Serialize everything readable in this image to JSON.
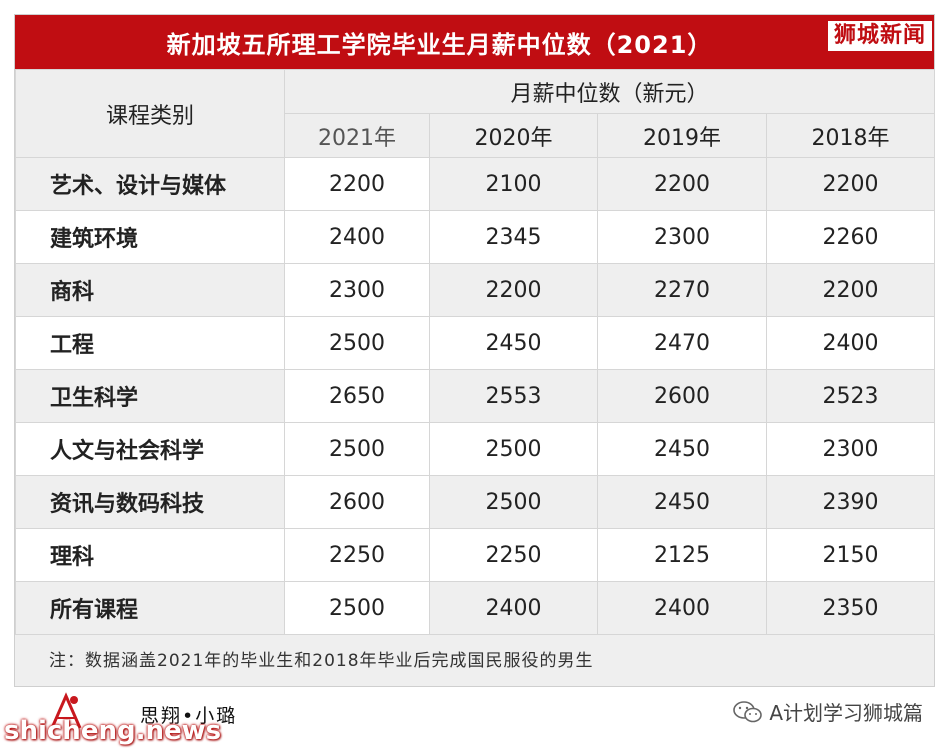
{
  "title": "新加坡五所理工学院毕业生月薪中位数（2021）",
  "brand_tag": "狮城新闻",
  "table": {
    "category_header": "课程类别",
    "group_header": "月薪中位数（新元）",
    "years": [
      "2021年",
      "2020年",
      "2019年",
      "2018年"
    ],
    "rows": [
      {
        "label": "艺术、设计与媒体",
        "v": [
          "2200",
          "2100",
          "2200",
          "2200"
        ]
      },
      {
        "label": "建筑环境",
        "v": [
          "2400",
          "2345",
          "2300",
          "2260"
        ]
      },
      {
        "label": "商科",
        "v": [
          "2300",
          "2200",
          "2270",
          "2200"
        ]
      },
      {
        "label": "工程",
        "v": [
          "2500",
          "2450",
          "2470",
          "2400"
        ]
      },
      {
        "label": "卫生科学",
        "v": [
          "2650",
          "2553",
          "2600",
          "2523"
        ]
      },
      {
        "label": "人文与社会科学",
        "v": [
          "2500",
          "2500",
          "2450",
          "2300"
        ]
      },
      {
        "label": "资讯与数码科技",
        "v": [
          "2600",
          "2500",
          "2450",
          "2390"
        ]
      },
      {
        "label": "理科",
        "v": [
          "2250",
          "2250",
          "2125",
          "2150"
        ]
      },
      {
        "label": "所有课程",
        "v": [
          "2500",
          "2400",
          "2400",
          "2350"
        ]
      }
    ]
  },
  "note": "注：数据涵盖2021年的毕业生和2018年毕业后完成国民服役的男生",
  "signature": "思翔•小璐",
  "site_url": "shicheng.news",
  "wechat_account": "A计划学习狮城篇",
  "colors": {
    "title_bar": "#c00d12",
    "brand": "#c00d12"
  }
}
